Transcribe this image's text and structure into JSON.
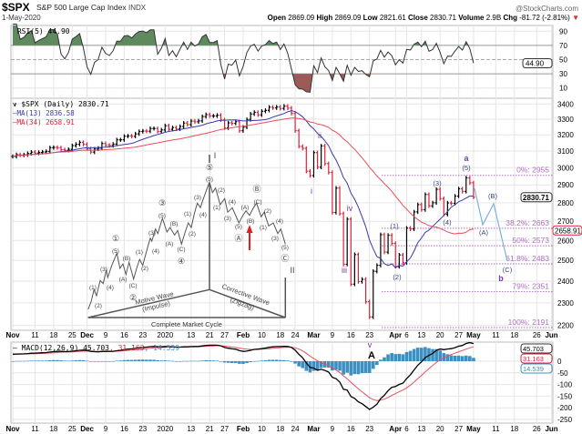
{
  "header": {
    "symbol": "$SPX",
    "name": "S&P 500 Large Cap Index",
    "exchange": "INDX",
    "date": "1-May-2020",
    "watermark": "@StockCharts.com",
    "open_label": "Open",
    "open": "2869.09",
    "high_label": "High",
    "high": "2869.09",
    "low_label": "Low",
    "low": "2821.61",
    "close_label": "Close",
    "close": "2830.71",
    "volume_label": "Volume",
    "volume": "2.9B",
    "chg_label": "Chg",
    "chg": "-81.72 (-2.81%)",
    "chg_arrow": "▼"
  },
  "rsi": {
    "label": "RSI(5) 44.90",
    "value_tag": "44.90",
    "ticks": [
      "90",
      "70",
      "50",
      "30",
      "10"
    ]
  },
  "price": {
    "legend": "$SPX (Daily) 2830.71",
    "ma13_legend": "MA(13) 2836.58",
    "ma34_legend": "MA(34) 2658.91",
    "last_tag": "2830.71",
    "ma34_tag": "2658.91",
    "ticks": [
      "3400",
      "3300",
      "3200",
      "3100",
      "3000",
      "2900",
      "2800",
      "2700",
      "2600",
      "2500",
      "2400",
      "2300",
      "2200"
    ]
  },
  "macd": {
    "label": "MACD(12,26,9) 45.703",
    "signal_label": ", 31.163",
    "hist_label": ", 14.539",
    "macd_tag": "45.703",
    "signal_tag": "31.163",
    "hist_tag": "14.539",
    "ticks": [
      "0",
      "-50",
      "-100",
      "-150",
      "-200",
      "-250"
    ]
  },
  "fib_levels": [
    {
      "label": "0%: 2955",
      "value": 2955
    },
    {
      "label": "38.2%: 2663",
      "value": 2663
    },
    {
      "label": "50%: 2573",
      "value": 2573
    },
    {
      "label": "61.8%: 2483",
      "value": 2483
    },
    {
      "label": "79%: 2351",
      "value": 2351
    },
    {
      "label": "100%: 2191",
      "value": 2191
    }
  ],
  "wave_labels": {
    "i": "i",
    "ii": "ii",
    "iii": "iii",
    "iv": "iv",
    "v": "v",
    "A": "A",
    "a": "a",
    "a5": "(5)",
    "w1": "(1)",
    "w2": "(2)",
    "w3": "(3)",
    "w4": "(4)",
    "pA": "(A)",
    "pB": "(B)",
    "pC": "(C)",
    "b": "b"
  },
  "elliott_diagram": {
    "labels": [
      "I",
      "⑤",
      "(5)",
      "(1)",
      "(2)",
      "(3)",
      "(4)",
      "①",
      "(5)",
      "(B)",
      "(A)",
      "(C)",
      "②",
      "(1)",
      "(2)",
      "(3)",
      "(4)",
      "③",
      "(5)",
      "(B)",
      "(A)",
      "(C)",
      "④",
      "(1)",
      "(2)",
      "(3)",
      "(4)",
      "(2)",
      "(1)",
      "(4)",
      "(3)",
      "(5)",
      "Ⓐ",
      "(A)",
      "(B)",
      "Ⓑ",
      "(C)",
      "(2)",
      "(1)",
      "(4)",
      "(3)",
      "(5)",
      "Ⓒ",
      "II"
    ],
    "motive": "Motive Wave",
    "motive_sub": "(Impulse)",
    "corrective": "Corrective Wave",
    "corrective_sub": "(Zigzag)",
    "cycle": "Complete Market Cycle"
  },
  "colors": {
    "up": "#000000",
    "down": "#e0203a",
    "ma13": "#3a3aa8",
    "ma34": "#e8505a",
    "rsi_hi": "#5f8a5f",
    "rsi_lo": "#9c5a58",
    "hist": "#3c8fc0",
    "fib": "#b070c0",
    "wave": "#7a3a9a",
    "proj": "#7fb0e0"
  },
  "chart_data": {
    "type": "line",
    "scale": "log",
    "ylim": [
      2200,
      3400
    ],
    "grid": true,
    "x_ticks": [
      {
        "label": "Nov",
        "date": "2019-11-01"
      },
      {
        "label": "11",
        "date": "2019-11-11"
      },
      {
        "label": "18",
        "date": "2019-11-18"
      },
      {
        "label": "25",
        "date": "2019-11-25"
      },
      {
        "label": "Dec",
        "date": "2019-12-02"
      },
      {
        "label": "9",
        "date": "2019-12-09"
      },
      {
        "label": "16",
        "date": "2019-12-16"
      },
      {
        "label": "23",
        "date": "2019-12-23"
      },
      {
        "label": "2020",
        "date": "2020-01-02"
      },
      {
        "label": "13",
        "date": "2020-01-13"
      },
      {
        "label": "21",
        "date": "2020-01-21"
      },
      {
        "label": "27",
        "date": "2020-01-27"
      },
      {
        "label": "Feb",
        "date": "2020-02-03"
      },
      {
        "label": "10",
        "date": "2020-02-10"
      },
      {
        "label": "18",
        "date": "2020-02-18"
      },
      {
        "label": "24",
        "date": "2020-02-24"
      },
      {
        "label": "Mar",
        "date": "2020-03-02"
      },
      {
        "label": "9",
        "date": "2020-03-09"
      },
      {
        "label": "16",
        "date": "2020-03-16"
      },
      {
        "label": "23",
        "date": "2020-03-23"
      },
      {
        "label": "Apr",
        "date": "2020-04-01"
      },
      {
        "label": "6",
        "date": "2020-04-06"
      },
      {
        "label": "13",
        "date": "2020-04-13"
      },
      {
        "label": "20",
        "date": "2020-04-20"
      },
      {
        "label": "27",
        "date": "2020-04-27"
      },
      {
        "label": "May",
        "date": "2020-05-01"
      },
      {
        "label": "11",
        "date": "2020-05-11"
      },
      {
        "label": "18",
        "date": "2020-05-18"
      },
      {
        "label": "26",
        "date": "2020-05-26"
      },
      {
        "label": "Jun",
        "date": "2020-06-01"
      }
    ],
    "dates": [
      "2019-11-01",
      "2019-11-04",
      "2019-11-05",
      "2019-11-06",
      "2019-11-07",
      "2019-11-08",
      "2019-11-11",
      "2019-11-12",
      "2019-11-13",
      "2019-11-14",
      "2019-11-15",
      "2019-11-18",
      "2019-11-19",
      "2019-11-20",
      "2019-11-21",
      "2019-11-22",
      "2019-11-25",
      "2019-11-26",
      "2019-11-27",
      "2019-11-29",
      "2019-12-02",
      "2019-12-03",
      "2019-12-04",
      "2019-12-05",
      "2019-12-06",
      "2019-12-09",
      "2019-12-10",
      "2019-12-11",
      "2019-12-12",
      "2019-12-13",
      "2019-12-16",
      "2019-12-17",
      "2019-12-18",
      "2019-12-19",
      "2019-12-20",
      "2019-12-23",
      "2019-12-24",
      "2019-12-26",
      "2019-12-27",
      "2019-12-30",
      "2019-12-31",
      "2020-01-02",
      "2020-01-03",
      "2020-01-06",
      "2020-01-07",
      "2020-01-08",
      "2020-01-09",
      "2020-01-10",
      "2020-01-13",
      "2020-01-14",
      "2020-01-15",
      "2020-01-16",
      "2020-01-17",
      "2020-01-21",
      "2020-01-22",
      "2020-01-23",
      "2020-01-24",
      "2020-01-27",
      "2020-01-28",
      "2020-01-29",
      "2020-01-30",
      "2020-01-31",
      "2020-02-03",
      "2020-02-04",
      "2020-02-05",
      "2020-02-06",
      "2020-02-07",
      "2020-02-10",
      "2020-02-11",
      "2020-02-12",
      "2020-02-13",
      "2020-02-14",
      "2020-02-18",
      "2020-02-19",
      "2020-02-20",
      "2020-02-21",
      "2020-02-24",
      "2020-02-25",
      "2020-02-26",
      "2020-02-27",
      "2020-02-28",
      "2020-03-02",
      "2020-03-03",
      "2020-03-04",
      "2020-03-05",
      "2020-03-06",
      "2020-03-09",
      "2020-03-10",
      "2020-03-11",
      "2020-03-12",
      "2020-03-13",
      "2020-03-16",
      "2020-03-17",
      "2020-03-18",
      "2020-03-19",
      "2020-03-20",
      "2020-03-23",
      "2020-03-24",
      "2020-03-25",
      "2020-03-26",
      "2020-03-27",
      "2020-03-30",
      "2020-03-31",
      "2020-04-01",
      "2020-04-02",
      "2020-04-03",
      "2020-04-06",
      "2020-04-07",
      "2020-04-08",
      "2020-04-09",
      "2020-04-13",
      "2020-04-14",
      "2020-04-15",
      "2020-04-16",
      "2020-04-17",
      "2020-04-20",
      "2020-04-21",
      "2020-04-22",
      "2020-04-23",
      "2020-04-24",
      "2020-04-27",
      "2020-04-28",
      "2020-04-29",
      "2020-04-30",
      "2020-05-01"
    ],
    "closes": [
      3067,
      3078,
      3075,
      3077,
      3085,
      3093,
      3087,
      3091,
      3094,
      3097,
      3120,
      3122,
      3120,
      3108,
      3104,
      3110,
      3133,
      3141,
      3153,
      3141,
      3113,
      3093,
      3112,
      3117,
      3146,
      3136,
      3133,
      3142,
      3169,
      3169,
      3191,
      3193,
      3191,
      3206,
      3221,
      3224,
      3223,
      3240,
      3240,
      3221,
      3231,
      3258,
      3235,
      3246,
      3237,
      3253,
      3275,
      3265,
      3288,
      3283,
      3289,
      3317,
      3330,
      3321,
      3321,
      3326,
      3295,
      3244,
      3276,
      3273,
      3284,
      3226,
      3249,
      3298,
      3334,
      3345,
      3328,
      3352,
      3358,
      3379,
      3374,
      3380,
      3370,
      3386,
      3373,
      3338,
      3226,
      3128,
      3116,
      2979,
      2954,
      3090,
      3003,
      3131,
      3024,
      2972,
      2747,
      2882,
      2741,
      2481,
      2711,
      2386,
      2529,
      2398,
      2409,
      2305,
      2237,
      2447,
      2476,
      2630,
      2541,
      2627,
      2585,
      2470,
      2527,
      2489,
      2664,
      2659,
      2750,
      2790,
      2762,
      2846,
      2783,
      2800,
      2875,
      2823,
      2737,
      2799,
      2797,
      2837,
      2878,
      2863,
      2940,
      2912,
      2831
    ]
  }
}
